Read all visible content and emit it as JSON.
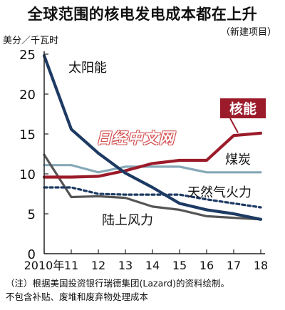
{
  "header": {
    "title": "全球范围的核电发电成本都在上升",
    "subtitle": "（新建项目）"
  },
  "watermark": "日经中文网",
  "notes": [
    "（注）根据美国投资银行瑞德集团(Lazard)的资料绘制。",
    "不包含补贴、废堆和废弃物处理成本"
  ],
  "colors": {
    "nuclear": "#9b1b2a",
    "coal": "#86a9b8",
    "solar": "#1d3a63",
    "gas": "#1d3a63",
    "wind": "#555555",
    "axis": "#222222"
  },
  "chart_data": {
    "type": "line",
    "title": "全球范围的核电发电成本都在上升",
    "subtitle": "（新建项目）",
    "ylabel": "美分／千瓦时",
    "xlabel": "",
    "x": [
      2010,
      2011,
      2012,
      2013,
      2014,
      2015,
      2016,
      2017,
      2018
    ],
    "x_tick_labels": [
      "2010年",
      "11",
      "12",
      "13",
      "14",
      "15",
      "16",
      "17",
      "18"
    ],
    "ylim": [
      0,
      25
    ],
    "y_ticks": [
      0,
      5,
      10,
      15,
      20,
      25
    ],
    "grid": false,
    "series": [
      {
        "name": "太阳能",
        "style": "solid-thick",
        "color": "#1d3a63",
        "values": [
          24.8,
          15.6,
          12.6,
          10.1,
          8.3,
          6.3,
          5.5,
          5.0,
          4.3
        ]
      },
      {
        "name": "核能",
        "style": "solid-thick",
        "color": "#9b1b2a",
        "values": [
          9.6,
          9.6,
          9.7,
          10.4,
          11.3,
          11.7,
          11.7,
          14.8,
          15.1
        ]
      },
      {
        "name": "煤炭",
        "style": "solid",
        "color": "#86a9b8",
        "values": [
          11.1,
          11.1,
          10.2,
          10.9,
          10.9,
          10.9,
          10.2,
          10.2,
          10.2
        ]
      },
      {
        "name": "天然气火力",
        "style": "dashed",
        "color": "#1d3a63",
        "values": [
          8.3,
          8.3,
          7.5,
          7.4,
          7.4,
          7.4,
          6.8,
          6.3,
          5.8
        ]
      },
      {
        "name": "陆上风力",
        "style": "solid",
        "color": "#555555",
        "values": [
          12.4,
          7.1,
          7.2,
          7.0,
          5.9,
          5.5,
          4.7,
          4.5,
          4.3
        ]
      }
    ],
    "series_labels": {
      "solar": "太阳能",
      "nuclear": "核能",
      "coal": "煤炭",
      "gas": "天然气火力",
      "wind": "陆上风力"
    }
  }
}
